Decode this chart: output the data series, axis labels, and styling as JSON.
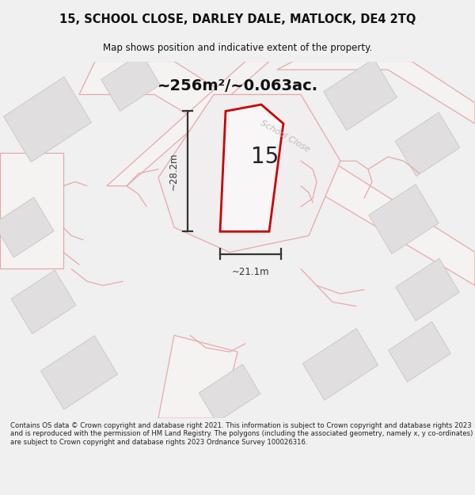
{
  "title": "15, SCHOOL CLOSE, DARLEY DALE, MATLOCK, DE4 2TQ",
  "subtitle": "Map shows position and indicative extent of the property.",
  "footer": "Contains OS data © Crown copyright and database right 2021. This information is subject to Crown copyright and database rights 2023 and is reproduced with the permission of HM Land Registry. The polygons (including the associated geometry, namely x, y co-ordinates) are subject to Crown copyright and database rights 2023 Ordnance Survey 100026316.",
  "area_text": "~256m²/~0.063ac.",
  "label": "15",
  "dim_width": "~21.1m",
  "dim_height": "~28.2m",
  "road_label": "School Close",
  "map_bg": "#efefef",
  "building_fill": "#e0dede",
  "building_edge": "#c8c6c4",
  "road_fill": "#f8f8f8",
  "road_pink": "#e8a8a8",
  "highlight_fill": "#f5f3f3",
  "highlight_edge": "#cc0000",
  "dim_color": "#333333",
  "title_color": "#111111",
  "footer_color": "#222222",
  "road_label_color": "#c0b8b8",
  "footer_bg": "#ffffff",
  "title_bg": "#f0f0f0"
}
